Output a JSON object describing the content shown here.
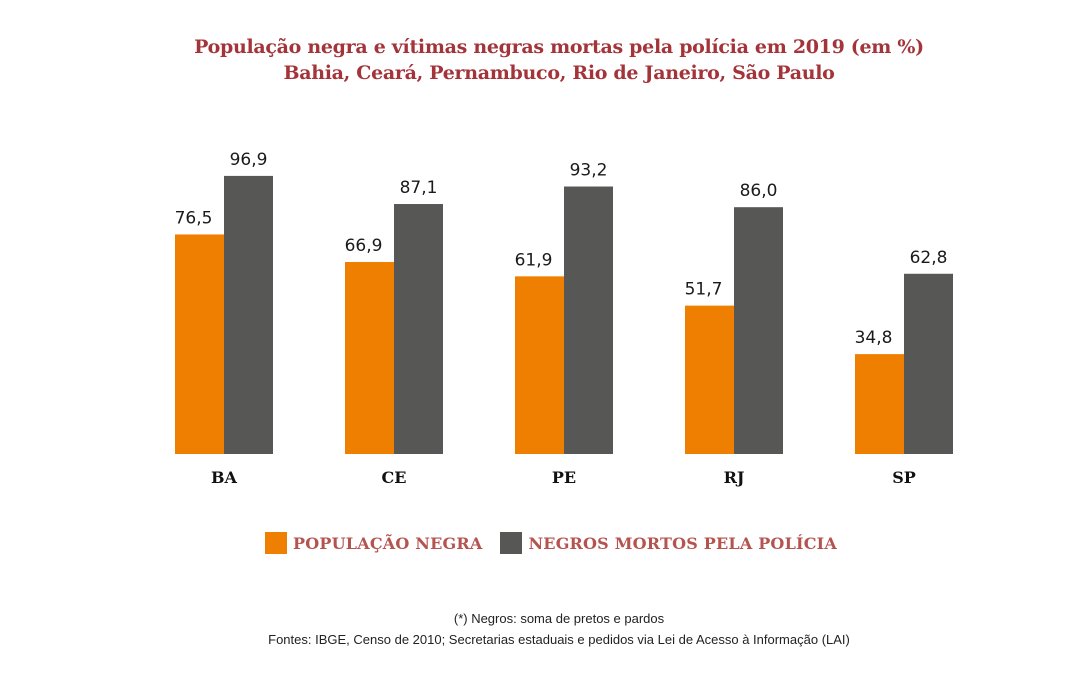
{
  "chart_data": {
    "type": "bar",
    "title": "População negra e vítimas negras mortas pela polícia em 2019 (em %)",
    "subtitle": "Bahia, Ceará, Pernambuco, Rio de Janeiro, São Paulo",
    "categories": [
      "BA",
      "CE",
      "PE",
      "RJ",
      "SP"
    ],
    "series": [
      {
        "name": "POPULAÇÃO NEGRA",
        "color": "#ef7f00",
        "values": [
          76.5,
          66.9,
          61.9,
          51.7,
          34.8
        ],
        "labels": [
          "76,5",
          "66,9",
          "61,9",
          "51,7",
          "34,8"
        ]
      },
      {
        "name": "NEGROS MORTOS PELA POLÍCIA",
        "color": "#575755",
        "values": [
          96.9,
          87.1,
          93.2,
          86.0,
          62.8
        ],
        "labels": [
          "96,9",
          "87,1",
          "93,2",
          "86,0",
          "62,8"
        ]
      }
    ],
    "xlabel": "",
    "ylabel": "",
    "ylim": [
      0,
      100
    ],
    "grid": false,
    "legend_position": "bottom"
  },
  "notes": {
    "definition": "(*) Negros: soma de pretos e pardos",
    "sources": "Fontes: IBGE, Censo de 2010; Secretarias estaduais e pedidos via Lei de Acesso à Informação (LAI)"
  }
}
